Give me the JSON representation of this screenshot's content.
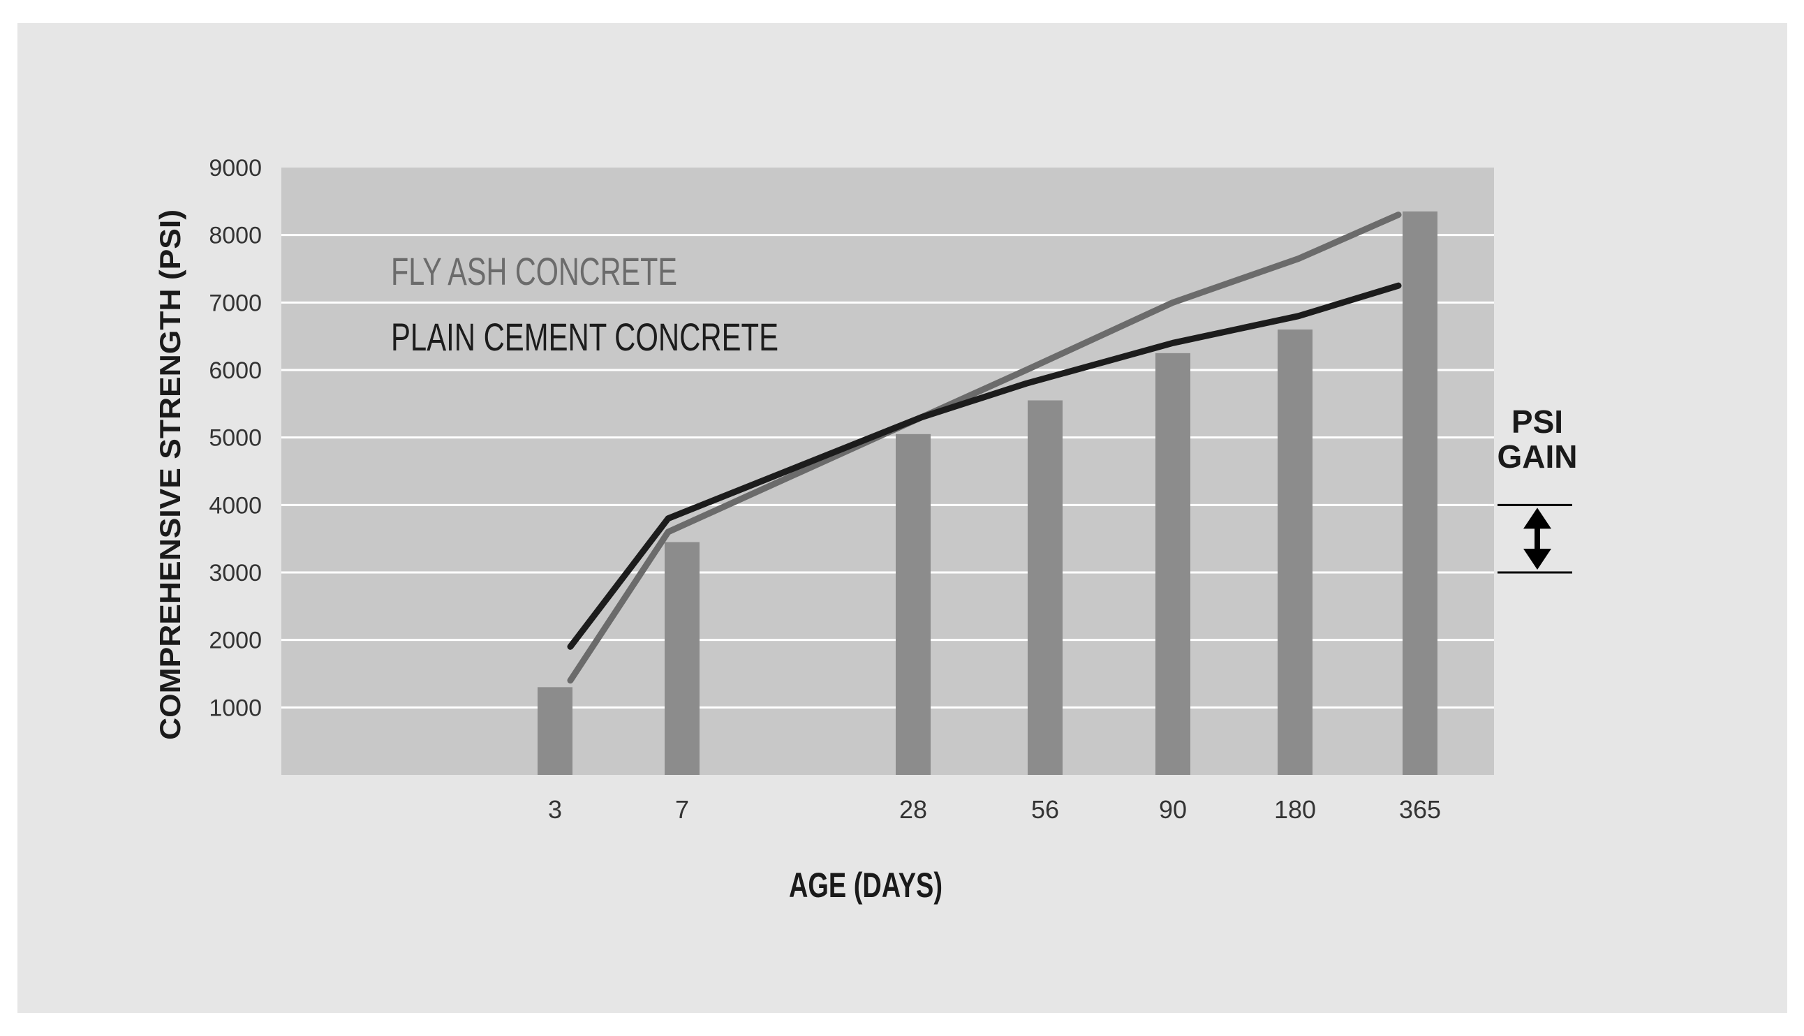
{
  "chart_data": {
    "type": "bar",
    "title": "",
    "xlabel": "AGE (DAYS)",
    "ylabel": "COMPREHENSIVE STRENGTH (PSI)",
    "ylim": [
      0,
      9000
    ],
    "y_ticks": [
      1000,
      2000,
      3000,
      4000,
      5000,
      6000,
      7000,
      8000,
      9000
    ],
    "y_tick_labels": [
      "1000",
      "2000",
      "3000",
      "4000",
      "5000",
      "6000",
      "7000",
      "8000",
      "9000"
    ],
    "categories": [
      "3",
      "7",
      "28",
      "56",
      "90",
      "180",
      "365"
    ],
    "values": [
      1300,
      3450,
      5050,
      5550,
      6250,
      6600,
      8350
    ],
    "series": [
      {
        "name": "FLY ASH CONCRETE",
        "color": "#6b6b6b",
        "values": [
          1400,
          3600,
          5300,
          6000,
          7000,
          7650,
          8300
        ]
      },
      {
        "name": "PLAIN CEMENT CONCRETE",
        "color": "#1c1c1c",
        "values": [
          1900,
          3800,
          5300,
          5800,
          6400,
          6800,
          7250
        ]
      }
    ],
    "annotation": {
      "text_line1": "PSI",
      "text_line2": "GAIN",
      "from": 3000,
      "to": 4000
    },
    "grid": true,
    "legend_placement": "top-left",
    "colors": {
      "plot_background": "#c8c8c8",
      "page_background": "#e6e6e6",
      "bar": "#8c8c8c",
      "grid": "#ffffff"
    }
  }
}
